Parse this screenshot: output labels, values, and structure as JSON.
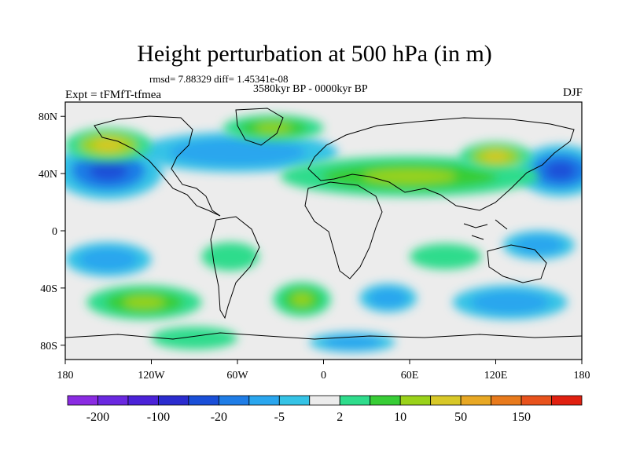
{
  "title": "Height perturbation at 500 hPa (in m)",
  "stats_line": "rmsd= 7.88329 diff= 1.45341e-08",
  "period": "3580kyr BP - 0000kyr BP",
  "experiment": "Expt = tFMfT-tfmea",
  "season": "DJF",
  "map": {
    "lon_ticks": [
      {
        "value": -180,
        "label": "180"
      },
      {
        "value": -120,
        "label": "120W"
      },
      {
        "value": -60,
        "label": "60W"
      },
      {
        "value": 0,
        "label": "0"
      },
      {
        "value": 60,
        "label": "60E"
      },
      {
        "value": 120,
        "label": "120E"
      },
      {
        "value": 180,
        "label": "180"
      }
    ],
    "lat_ticks": [
      {
        "value": 80,
        "label": "80N"
      },
      {
        "value": 40,
        "label": "40N"
      },
      {
        "value": 0,
        "label": "0"
      },
      {
        "value": -40,
        "label": "40S"
      },
      {
        "value": -80,
        "label": "80S"
      }
    ],
    "lat_range": [
      -90,
      90
    ],
    "lon_range": [
      -180,
      180
    ]
  },
  "colorbar": {
    "colors": [
      "#8a2be2",
      "#6a28e0",
      "#4b22d8",
      "#2b2ccf",
      "#1a4fd8",
      "#1f7de6",
      "#2aa6ee",
      "#35c3e6",
      "#ececec",
      "#2fdc8c",
      "#38cd36",
      "#9ad21a",
      "#d8c828",
      "#e8a824",
      "#e87a1c",
      "#e8521c",
      "#e02010"
    ],
    "labels": [
      {
        "boundary": 1,
        "text": "-200"
      },
      {
        "boundary": 3,
        "text": "-100"
      },
      {
        "boundary": 5,
        "text": "-20"
      },
      {
        "boundary": 7,
        "text": "-5"
      },
      {
        "boundary": 9,
        "text": "2"
      },
      {
        "boundary": 11,
        "text": "10"
      },
      {
        "boundary": 13,
        "text": "50"
      },
      {
        "boundary": 15,
        "text": "150"
      }
    ]
  },
  "anomaly_fields": [
    {
      "lon": -150,
      "lat": 42,
      "rx": 38,
      "ry": 20,
      "level": "strong-neg"
    },
    {
      "lon": 165,
      "lat": 42,
      "rx": 30,
      "ry": 18,
      "level": "strong-neg"
    },
    {
      "lon": -60,
      "lat": 55,
      "rx": 70,
      "ry": 14,
      "level": "neg"
    },
    {
      "lon": 60,
      "lat": 38,
      "rx": 90,
      "ry": 14,
      "level": "pos"
    },
    {
      "lon": 120,
      "lat": 52,
      "rx": 25,
      "ry": 10,
      "level": "strong-pos"
    },
    {
      "lon": -150,
      "lat": 60,
      "rx": 30,
      "ry": 12,
      "level": "strong-pos"
    },
    {
      "lon": -35,
      "lat": 72,
      "rx": 35,
      "ry": 9,
      "level": "pos"
    },
    {
      "lon": -125,
      "lat": -50,
      "rx": 40,
      "ry": 12,
      "level": "pos"
    },
    {
      "lon": -15,
      "lat": -48,
      "rx": 20,
      "ry": 12,
      "level": "pos"
    },
    {
      "lon": 45,
      "lat": -47,
      "rx": 20,
      "ry": 10,
      "level": "neg"
    },
    {
      "lon": 130,
      "lat": -50,
      "rx": 40,
      "ry": 12,
      "level": "neg"
    },
    {
      "lon": -150,
      "lat": -20,
      "rx": 30,
      "ry": 12,
      "level": "neg"
    },
    {
      "lon": 150,
      "lat": -10,
      "rx": 25,
      "ry": 10,
      "level": "neg"
    },
    {
      "lon": -65,
      "lat": -18,
      "rx": 20,
      "ry": 10,
      "level": "weak-pos"
    },
    {
      "lon": 85,
      "lat": -18,
      "rx": 25,
      "ry": 9,
      "level": "weak-pos"
    },
    {
      "lon": -90,
      "lat": -75,
      "rx": 30,
      "ry": 8,
      "level": "weak-pos"
    },
    {
      "lon": 20,
      "lat": -78,
      "rx": 30,
      "ry": 7,
      "level": "neg"
    }
  ]
}
